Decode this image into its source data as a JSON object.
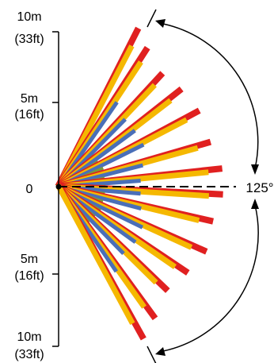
{
  "axis": {
    "labels": [
      {
        "distance": "10m",
        "sub": "(33ft)"
      },
      {
        "distance": "5m",
        "sub": "(16ft)"
      },
      {
        "distance": "0",
        "sub": ""
      },
      {
        "distance": "5m",
        "sub": "(16ft)"
      },
      {
        "distance": "10m",
        "sub": "(33ft)"
      }
    ]
  },
  "coverage": {
    "angle_label": "125°",
    "angle_degrees": 125,
    "zones": [
      {
        "angle": -62,
        "red": 11.4,
        "yellow": 10.2,
        "blue": null,
        "green": null
      },
      {
        "angle": -56,
        "red": 10.6,
        "yellow": 9.6,
        "blue": 6.6,
        "green": null
      },
      {
        "angle": -46,
        "red": 9.9,
        "yellow": 9.0,
        "blue": 6.1,
        "green": 3.0
      },
      {
        "angle": -37,
        "red": 10.1,
        "yellow": 9.1,
        "blue": 6.1,
        "green": 3.0
      },
      {
        "angle": -27,
        "red": 10.3,
        "yellow": 9.3,
        "blue": 6.1,
        "green": 3.1
      },
      {
        "angle": -15,
        "red": 10.2,
        "yellow": 9.3,
        "blue": 5.6,
        "green": 3.0
      },
      {
        "angle": -5,
        "red": 10.6,
        "yellow": 9.7,
        "blue": 5.3,
        "green": 3.0
      },
      {
        "angle": 4,
        "red": 10.6,
        "yellow": 9.7,
        "blue": 5.3,
        "green": 3.0
      },
      {
        "angle": 14,
        "red": 10.2,
        "yellow": 9.3,
        "blue": 5.5,
        "green": 3.0
      },
      {
        "angle": 25,
        "red": 10.4,
        "yellow": 9.4,
        "blue": 6.0,
        "green": 3.1
      },
      {
        "angle": 35,
        "red": 10.0,
        "yellow": 9.1,
        "blue": 6.1,
        "green": 3.0
      },
      {
        "angle": 45,
        "red": 9.7,
        "yellow": 8.8,
        "blue": 6.0,
        "green": 3.0
      },
      {
        "angle": 55,
        "red": 10.5,
        "yellow": 9.5,
        "blue": 6.6,
        "green": null
      },
      {
        "angle": 62,
        "red": 11.2,
        "yellow": 10.0,
        "blue": null,
        "green": null
      }
    ]
  },
  "colors": {
    "red": "#e02020",
    "yellow": "#f5b800",
    "blue": "#4a6fb8",
    "green": "#7a9a3c",
    "axis": "#000000"
  }
}
